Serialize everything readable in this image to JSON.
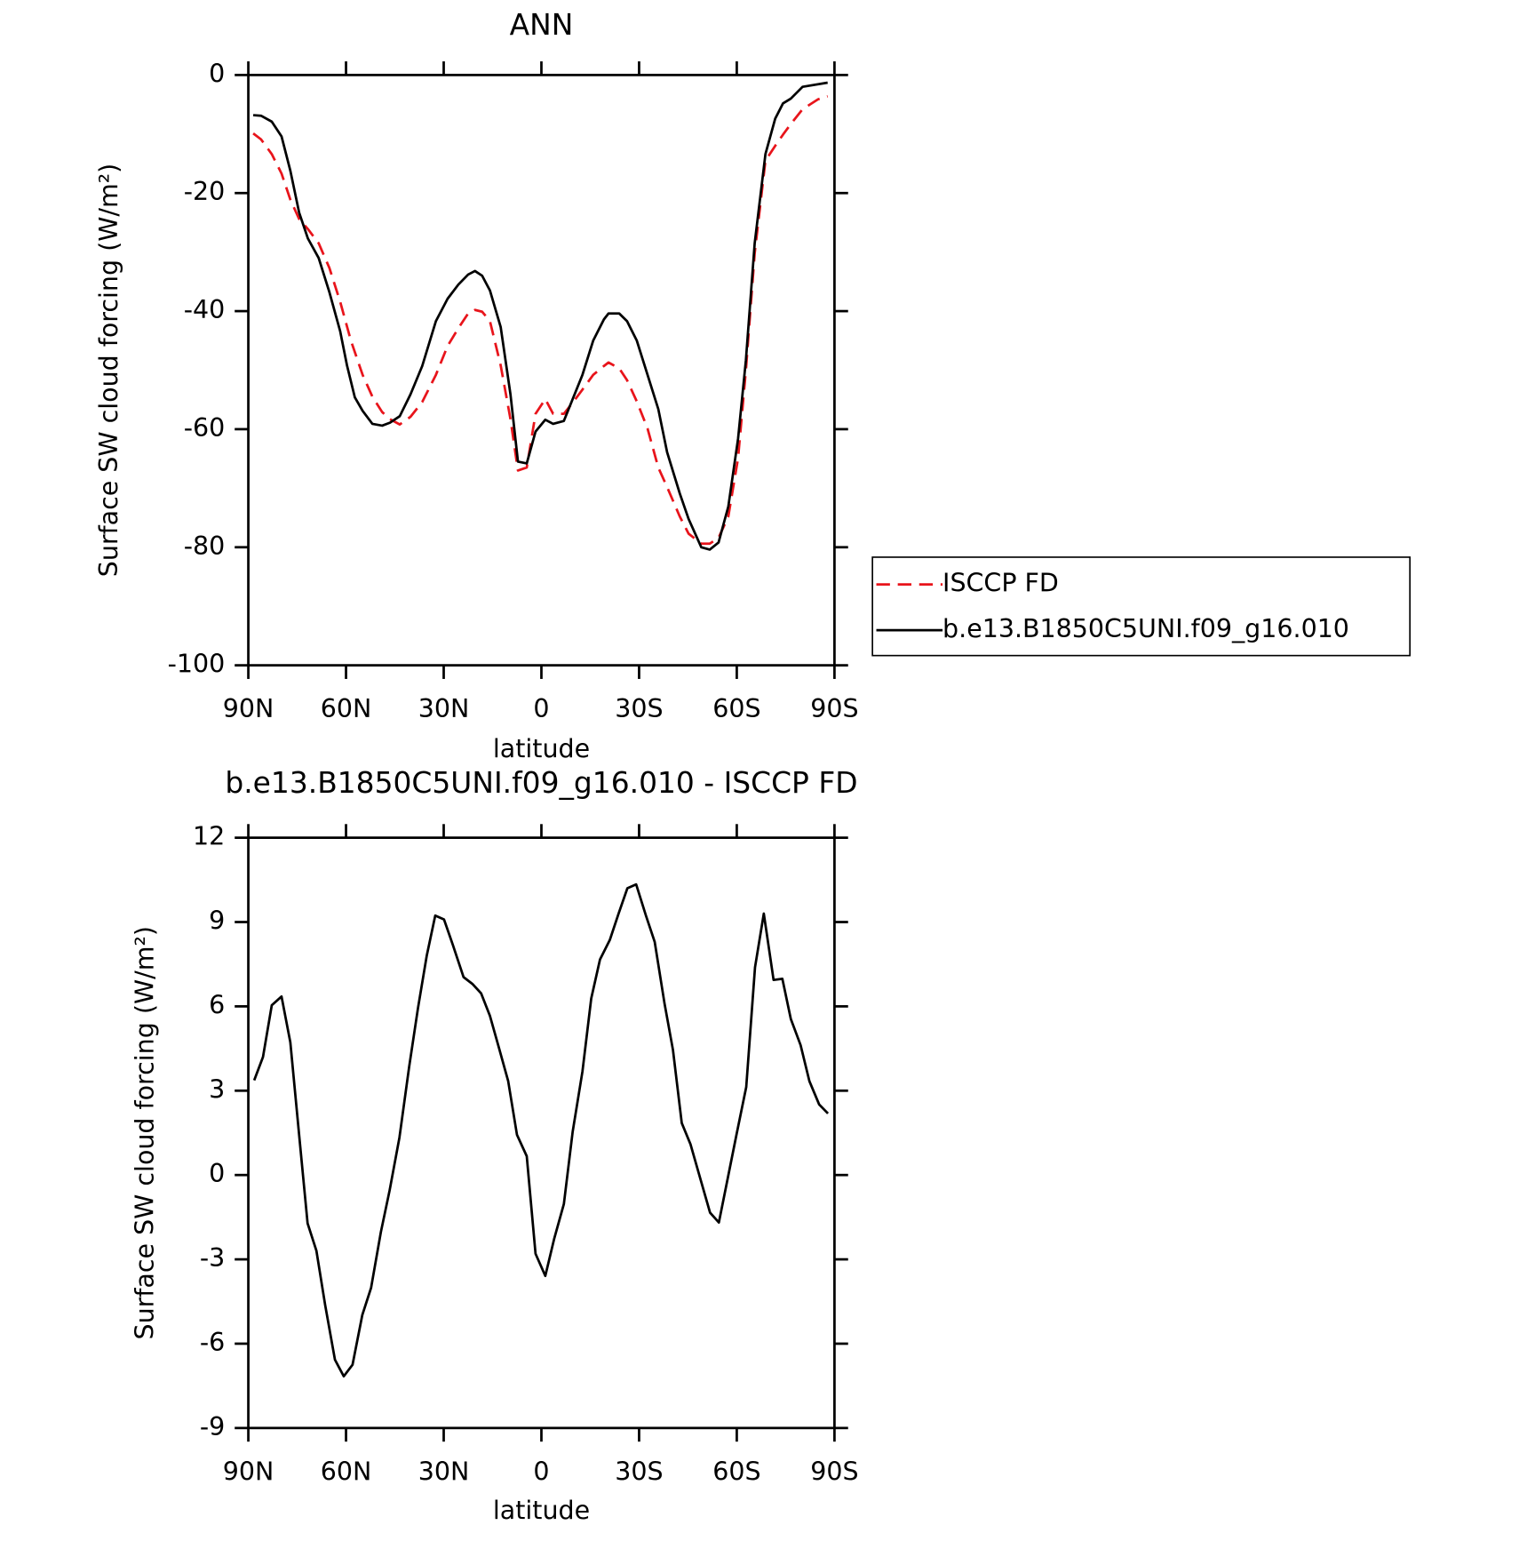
{
  "chart_data": [
    {
      "type": "line",
      "title": "ANN",
      "xlabel": "latitude",
      "ylabel": "Surface SW cloud forcing (W/m²)",
      "xlim": [
        90,
        -90
      ],
      "xticks": [
        {
          "value": 90,
          "label": "90N"
        },
        {
          "value": 60,
          "label": "60N"
        },
        {
          "value": 30,
          "label": "30N"
        },
        0,
        {
          "value": -30,
          "label": "30S"
        },
        {
          "value": -60,
          "label": "60S"
        },
        {
          "value": -90,
          "label": "90S"
        }
      ],
      "ylim": [
        -100,
        0
      ],
      "yticks": [
        -100,
        -80,
        -60,
        -40,
        -20,
        0
      ],
      "legend": "right",
      "series": [
        {
          "name": "ISCCP FD",
          "color": "#e8141b",
          "dashed": true,
          "x": [
            88.5,
            86.1,
            82.8,
            79.8,
            77.1,
            74.4,
            71.7,
            68.4,
            65.1,
            61.8,
            58.5,
            54.9,
            51.9,
            48.9,
            46.5,
            43.5,
            40.2,
            36.6,
            32.4,
            28.8,
            25.5,
            22.5,
            20.4,
            18.2,
            15.8,
            12.5,
            9.5,
            7.2,
            4.5,
            1.8,
            -1.2,
            -3.6,
            -6.9,
            -9.9,
            -12.6,
            -15.9,
            -19.2,
            -20.6,
            -23.9,
            -26.3,
            -29.3,
            -32.6,
            -35.9,
            -38.6,
            -42.5,
            -45.2,
            -49.1,
            -51.7,
            -54.4,
            -57.4,
            -60.4,
            -62.8,
            -65.5,
            -68.8,
            -71.8,
            -74.2,
            -76.6,
            -80.2,
            -85.0,
            -87.9
          ],
          "values": [
            -9.9,
            -10.9,
            -13.4,
            -16.7,
            -21.1,
            -24.4,
            -26.1,
            -28.5,
            -32.7,
            -38.4,
            -45.0,
            -50.8,
            -54.5,
            -57.1,
            -58.3,
            -59.2,
            -57.9,
            -55.4,
            -50.8,
            -45.9,
            -42.9,
            -40.4,
            -39.8,
            -40.1,
            -41.7,
            -49.2,
            -58.3,
            -67.0,
            -66.5,
            -57.4,
            -54.9,
            -57.4,
            -57.4,
            -55.3,
            -53.3,
            -50.8,
            -49.3,
            -48.7,
            -49.7,
            -51.7,
            -55.3,
            -59.9,
            -66.5,
            -69.8,
            -74.8,
            -77.7,
            -79.4,
            -79.4,
            -78.4,
            -74.8,
            -64.9,
            -50.0,
            -30.2,
            -14.5,
            -12.0,
            -10.1,
            -8.3,
            -5.8,
            -4.1,
            -3.6
          ]
        },
        {
          "name": "b.e13.B1850C5UNI.f09_g16.010",
          "color": "#000000",
          "dashed": false,
          "x": [
            88.5,
            86.1,
            82.8,
            79.8,
            77.1,
            74.4,
            71.7,
            68.4,
            65.1,
            61.8,
            59.7,
            57.3,
            54.9,
            51.9,
            48.9,
            46.5,
            43.5,
            40.2,
            36.6,
            32.4,
            28.8,
            25.5,
            22.5,
            20.4,
            18.2,
            15.8,
            12.5,
            9.5,
            7.2,
            4.5,
            1.8,
            -1.2,
            -3.6,
            -6.9,
            -9.9,
            -12.6,
            -15.9,
            -19.2,
            -20.6,
            -23.9,
            -26.3,
            -29.3,
            -32.6,
            -35.9,
            -38.6,
            -42.5,
            -45.2,
            -49.1,
            -51.7,
            -54.4,
            -57.4,
            -60.4,
            -62.8,
            -65.5,
            -68.8,
            -71.8,
            -74.2,
            -76.6,
            -80.2,
            -87.9
          ],
          "values": [
            -6.8,
            -6.9,
            -7.9,
            -10.4,
            -16.2,
            -23.3,
            -27.7,
            -31.0,
            -36.8,
            -43.4,
            -49.2,
            -54.6,
            -56.9,
            -59.1,
            -59.4,
            -58.9,
            -57.8,
            -54.1,
            -49.3,
            -41.7,
            -37.9,
            -35.5,
            -33.8,
            -33.2,
            -34.0,
            -36.5,
            -42.7,
            -54.1,
            -65.5,
            -65.8,
            -60.4,
            -58.4,
            -59.1,
            -58.6,
            -54.5,
            -50.8,
            -45.0,
            -41.4,
            -40.4,
            -40.4,
            -41.7,
            -45.0,
            -50.8,
            -56.6,
            -63.9,
            -70.9,
            -75.2,
            -80.0,
            -80.4,
            -79.2,
            -73.1,
            -61.6,
            -48.3,
            -28.5,
            -13.4,
            -7.4,
            -4.8,
            -4.0,
            -2.0,
            -1.3
          ]
        }
      ]
    },
    {
      "type": "line",
      "title": "b.e13.B1850C5UNI.f09_g16.010 - ISCCP FD",
      "xlabel": "latitude",
      "ylabel": "Surface SW cloud forcing (W/m²)",
      "xlim": [
        90,
        -90
      ],
      "xticks": [
        {
          "value": 90,
          "label": "90N"
        },
        {
          "value": 60,
          "label": "60N"
        },
        {
          "value": 30,
          "label": "30N"
        },
        0,
        {
          "value": -30,
          "label": "30S"
        },
        {
          "value": -60,
          "label": "60S"
        },
        {
          "value": -90,
          "label": "90S"
        }
      ],
      "ylim": [
        -9,
        12
      ],
      "yticks": [
        -9,
        -6,
        -3,
        0,
        3,
        6,
        9,
        12
      ],
      "series": [
        {
          "color": "#000000",
          "dashed": false,
          "x": [
            88.2,
            85.5,
            82.8,
            79.8,
            77.1,
            74.4,
            71.8,
            69.1,
            66.4,
            63.4,
            60.7,
            58.0,
            55.0,
            52.3,
            49.3,
            46.6,
            43.6,
            40.6,
            37.9,
            35.2,
            32.6,
            29.9,
            27.2,
            23.9,
            21.2,
            18.5,
            15.8,
            13.1,
            10.2,
            7.5,
            4.5,
            1.8,
            -1.2,
            -3.9,
            -6.9,
            -9.6,
            -12.6,
            -15.3,
            -18.0,
            -21.0,
            -23.7,
            -26.4,
            -29.1,
            -32.1,
            -34.8,
            -37.8,
            -40.4,
            -43.1,
            -45.8,
            -48.8,
            -51.8,
            -54.5,
            -57.2,
            -59.9,
            -62.9,
            -65.6,
            -68.3,
            -71.3,
            -74.0,
            -76.6,
            -79.6,
            -82.3,
            -85.3,
            -88.0
          ],
          "values": [
            3.37,
            4.2,
            6.04,
            6.35,
            4.72,
            1.43,
            -1.72,
            -2.69,
            -4.63,
            -6.57,
            -7.16,
            -6.75,
            -4.98,
            -4.01,
            -2.03,
            -0.54,
            1.33,
            3.86,
            5.94,
            7.81,
            9.23,
            9.09,
            8.19,
            7.04,
            6.8,
            6.46,
            5.66,
            4.55,
            3.34,
            1.43,
            0.67,
            -2.8,
            -3.59,
            -2.28,
            -1.03,
            1.54,
            3.68,
            6.28,
            7.67,
            8.36,
            9.3,
            10.2,
            10.34,
            9.23,
            8.29,
            6.11,
            4.45,
            1.85,
            1.09,
            -0.13,
            -1.34,
            -1.69,
            -0.13,
            1.43,
            3.13,
            7.39,
            9.3,
            6.94,
            6.98,
            5.55,
            4.62,
            3.34,
            2.51,
            2.19
          ]
        }
      ]
    }
  ]
}
